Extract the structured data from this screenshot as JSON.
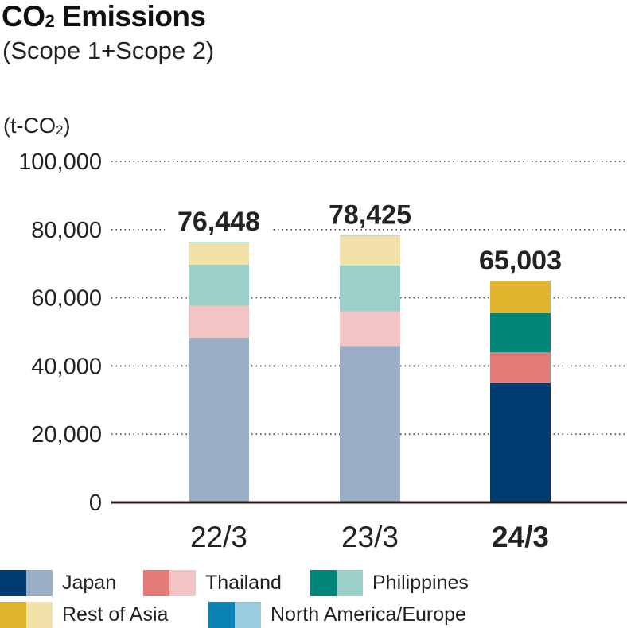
{
  "title_main": "CO",
  "title_sub": "2",
  "title_rest": " Emissions",
  "subtitle": "(Scope 1+Scope 2)",
  "colors": {
    "japan_dark": "#003C71",
    "japan_light": "#9AAFC5",
    "thailand_dark": "#E27A77",
    "thailand_light": "#F2C5C4",
    "philippines_dark": "#00877A",
    "philippines_light": "#9BCFCA",
    "rest_dark": "#E0B42E",
    "rest_light": "#F1E0A8",
    "na_dark": "#0A82B4",
    "na_light": "#9ACCE0"
  },
  "legend": [
    {
      "label": "Japan",
      "dark": "#003C71",
      "light": "#9AAFC5"
    },
    {
      "label": "Thailand",
      "dark": "#E27A77",
      "light": "#F2C5C4"
    },
    {
      "label": "Philippines",
      "dark": "#00877A",
      "light": "#9BCFCA"
    },
    {
      "label": "Rest of Asia",
      "dark": "#E0B42E",
      "light": "#F1E0A8"
    },
    {
      "label": "North America/Europe",
      "dark": "#0A82B4",
      "light": "#9ACCE0"
    }
  ],
  "chart_data": {
    "type": "bar",
    "stacked": true,
    "unit_label": "(t-CO2)",
    "ylim": [
      0,
      100000
    ],
    "yticks": [
      0,
      20000,
      40000,
      60000,
      80000,
      100000
    ],
    "ytick_labels": [
      "0",
      "20,000",
      "40,000",
      "60,000",
      "80,000",
      "100,000"
    ],
    "grid": "dotted",
    "categories": [
      "22/3",
      "23/3",
      "24/3"
    ],
    "highlight_category": "24/3",
    "totals": [
      76448,
      78425,
      65003
    ],
    "total_labels": [
      "76,448",
      "78,425",
      "65,003"
    ],
    "series": [
      {
        "name": "Japan",
        "values": [
          48300,
          45800,
          35000
        ]
      },
      {
        "name": "Thailand",
        "values": [
          9400,
          10200,
          9000
        ]
      },
      {
        "name": "Philippines",
        "values": [
          12000,
          13500,
          11500
        ]
      },
      {
        "name": "Rest of Asia",
        "values": [
          6500,
          8700,
          9500
        ]
      },
      {
        "name": "North America/Europe",
        "values": [
          248,
          225,
          3
        ]
      }
    ]
  }
}
